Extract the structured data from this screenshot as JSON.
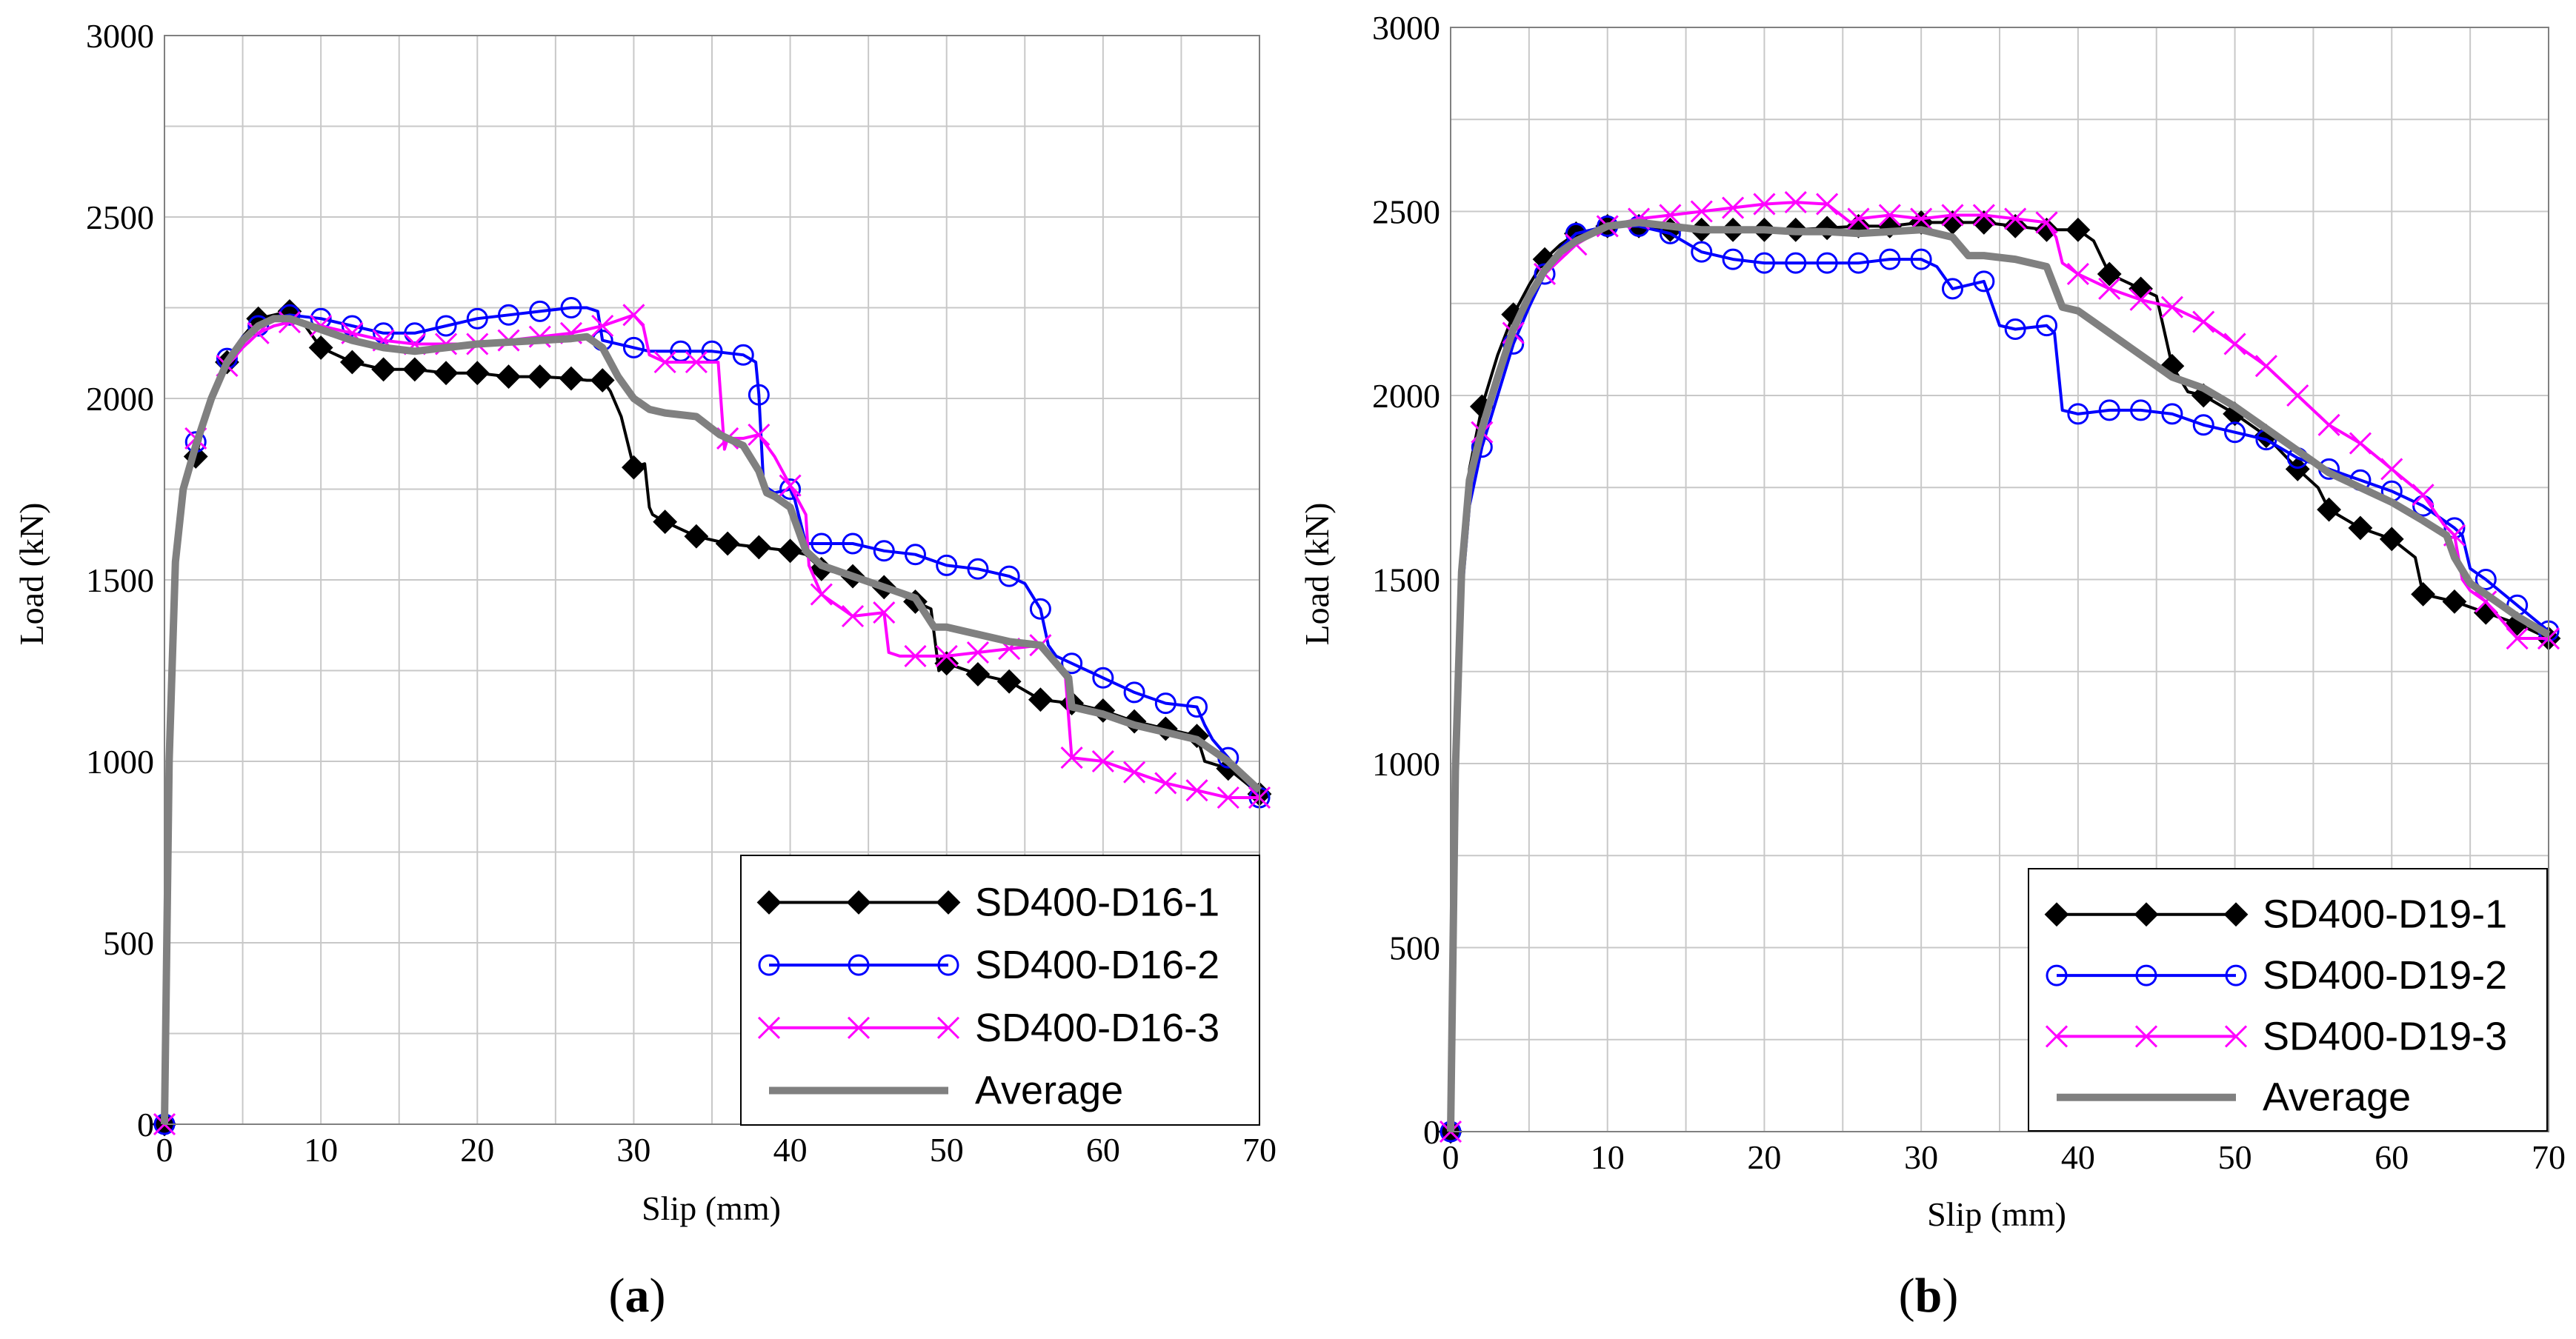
{
  "figure": {
    "panels": [
      "a",
      "b"
    ]
  },
  "chart_data": [
    {
      "type": "line",
      "panel_label": "a",
      "xlabel": "Slip (mm)",
      "ylabel": "Load (kN)",
      "xlim": [
        0,
        70
      ],
      "ylim": [
        0,
        3000
      ],
      "xticks": [
        0,
        10,
        20,
        30,
        40,
        50,
        60,
        70
      ],
      "yticks": [
        0,
        500,
        1000,
        1500,
        2000,
        2500,
        3000
      ],
      "grid": true,
      "legend_position": "bottom-right",
      "series": [
        {
          "name": "SD400-D16-1",
          "color": "#000000",
          "marker": "diamond",
          "x": [
            0,
            0.3,
            0.7,
            1.2,
            2,
            3,
            4,
            5,
            6,
            7,
            8,
            9,
            10,
            12,
            14,
            16,
            18,
            20,
            22,
            24,
            26,
            27,
            28,
            28.5,
            29.2,
            30,
            30.7,
            31,
            31.2,
            32,
            33,
            34,
            36,
            38,
            40,
            41,
            42,
            44,
            46,
            48,
            49,
            49.5,
            50,
            52,
            54,
            56,
            58,
            60,
            62,
            64,
            66,
            66.5,
            68,
            70
          ],
          "y": [
            0,
            1000,
            1550,
            1750,
            1840,
            2000,
            2100,
            2170,
            2220,
            2230,
            2240,
            2200,
            2140,
            2100,
            2080,
            2080,
            2070,
            2070,
            2060,
            2060,
            2055,
            2050,
            2050,
            2020,
            1950,
            1810,
            1820,
            1700,
            1680,
            1660,
            1640,
            1620,
            1600,
            1590,
            1580,
            1570,
            1530,
            1510,
            1480,
            1440,
            1420,
            1250,
            1270,
            1240,
            1220,
            1170,
            1160,
            1140,
            1110,
            1090,
            1070,
            1000,
            980,
            910
          ]
        },
        {
          "name": "SD400-D16-2",
          "color": "#0000FF",
          "marker": "circle",
          "x": [
            0,
            0.3,
            0.7,
            1.2,
            2,
            3,
            4,
            5,
            6,
            7,
            8,
            10,
            12,
            14,
            16,
            18,
            20,
            22,
            24,
            26,
            27,
            27.7,
            28,
            30,
            31,
            33,
            35,
            37,
            37.8,
            38,
            38.3,
            39,
            40,
            40.3,
            41,
            42,
            44,
            46,
            48,
            50,
            52,
            54,
            55,
            56,
            56.5,
            57,
            58,
            60,
            62,
            64,
            66,
            66.5,
            67,
            68,
            70
          ],
          "y": [
            0,
            1000,
            1550,
            1750,
            1880,
            2000,
            2110,
            2170,
            2200,
            2220,
            2230,
            2220,
            2200,
            2180,
            2180,
            2200,
            2220,
            2230,
            2240,
            2250,
            2250,
            2240,
            2160,
            2140,
            2130,
            2130,
            2130,
            2120,
            2100,
            2010,
            1760,
            1740,
            1750,
            1720,
            1600,
            1600,
            1600,
            1580,
            1570,
            1540,
            1530,
            1510,
            1490,
            1420,
            1320,
            1290,
            1270,
            1230,
            1190,
            1160,
            1150,
            1100,
            1060,
            1010,
            900
          ]
        },
        {
          "name": "SD400-D16-3",
          "color": "#FF00FF",
          "marker": "x",
          "x": [
            0,
            0.3,
            0.7,
            1.2,
            2,
            3,
            4,
            5,
            6,
            7,
            8,
            10,
            12,
            14,
            16,
            18,
            20,
            22,
            24,
            26,
            28,
            30,
            30.6,
            31,
            32,
            34,
            35.4,
            35.8,
            36,
            37,
            38,
            39,
            40,
            41,
            41.2,
            42,
            44,
            46,
            46.3,
            47,
            48,
            50,
            52,
            54,
            56,
            57.6,
            58,
            60,
            62,
            64,
            66,
            68,
            70
          ],
          "y": [
            0,
            1000,
            1550,
            1750,
            1890,
            2000,
            2090,
            2140,
            2180,
            2200,
            2210,
            2200,
            2180,
            2160,
            2150,
            2150,
            2150,
            2160,
            2170,
            2180,
            2200,
            2230,
            2200,
            2120,
            2100,
            2100,
            2100,
            1860,
            1890,
            1890,
            1900,
            1840,
            1760,
            1680,
            1540,
            1460,
            1400,
            1410,
            1300,
            1290,
            1290,
            1290,
            1300,
            1310,
            1320,
            1230,
            1010,
            1000,
            970,
            940,
            920,
            900,
            900
          ]
        },
        {
          "name": "Average",
          "color": "#808080",
          "marker": "none",
          "x": [
            0,
            0.3,
            0.7,
            1.2,
            2,
            3,
            4,
            5,
            6,
            7,
            8,
            10,
            12,
            14,
            16,
            18,
            20,
            22,
            24,
            26,
            27,
            28,
            29,
            30,
            31,
            32,
            34,
            35.5,
            36,
            37,
            38,
            38.5,
            39,
            40,
            41,
            42,
            44,
            46,
            48,
            49.2,
            50,
            52,
            54,
            56,
            57.8,
            58,
            60,
            62,
            64,
            66,
            68,
            70
          ],
          "y": [
            0,
            1000,
            1550,
            1750,
            1870,
            2000,
            2100,
            2160,
            2200,
            2220,
            2220,
            2190,
            2160,
            2140,
            2130,
            2140,
            2150,
            2155,
            2160,
            2165,
            2170,
            2140,
            2060,
            2000,
            1970,
            1960,
            1950,
            1900,
            1890,
            1870,
            1800,
            1740,
            1730,
            1700,
            1580,
            1540,
            1510,
            1480,
            1450,
            1370,
            1370,
            1350,
            1330,
            1320,
            1230,
            1150,
            1130,
            1100,
            1080,
            1060,
            1000,
            920
          ]
        }
      ]
    },
    {
      "type": "line",
      "panel_label": "b",
      "xlabel": "Slip (mm)",
      "ylabel": "Load (kN)",
      "xlim": [
        0,
        70
      ],
      "ylim": [
        0,
        3000
      ],
      "xticks": [
        0,
        10,
        20,
        30,
        40,
        50,
        60,
        70
      ],
      "yticks": [
        0,
        500,
        1000,
        1500,
        2000,
        2500,
        3000
      ],
      "grid": true,
      "legend_position": "bottom-right",
      "series": [
        {
          "name": "SD400-D19-1",
          "color": "#000000",
          "marker": "diamond",
          "x": [
            0,
            0.3,
            0.7,
            1.2,
            2,
            3,
            4,
            5,
            6,
            7,
            8,
            10,
            12,
            14,
            16,
            18,
            20,
            22,
            24,
            26,
            28,
            30,
            32,
            34,
            36,
            38,
            40,
            41,
            42,
            44,
            45,
            46,
            47,
            48,
            50,
            52,
            54,
            55.3,
            56,
            58,
            60,
            61.5,
            62,
            64,
            66,
            68,
            70
          ],
          "y": [
            0,
            1000,
            1550,
            1800,
            1970,
            2110,
            2220,
            2300,
            2370,
            2410,
            2440,
            2460,
            2460,
            2450,
            2450,
            2450,
            2450,
            2450,
            2455,
            2460,
            2460,
            2470,
            2470,
            2470,
            2460,
            2450,
            2450,
            2420,
            2330,
            2290,
            2270,
            2080,
            2010,
            2000,
            1950,
            1890,
            1800,
            1750,
            1690,
            1640,
            1610,
            1560,
            1460,
            1440,
            1410,
            1380,
            1340
          ]
        },
        {
          "name": "SD400-D19-2",
          "color": "#0000FF",
          "marker": "circle",
          "x": [
            0,
            0.3,
            0.7,
            1.2,
            2,
            3,
            4,
            5,
            6,
            7,
            8,
            10,
            12,
            14,
            16,
            18,
            20,
            22,
            24,
            26,
            28,
            30,
            31,
            32,
            33,
            34,
            35,
            36,
            38,
            38.5,
            39,
            40,
            42,
            44,
            46,
            48,
            50,
            52,
            54,
            56,
            58,
            60,
            62,
            64,
            64.5,
            65,
            66,
            68,
            70
          ],
          "y": [
            0,
            950,
            1450,
            1700,
            1860,
            2000,
            2140,
            2240,
            2330,
            2400,
            2440,
            2460,
            2460,
            2440,
            2390,
            2370,
            2360,
            2360,
            2360,
            2360,
            2370,
            2370,
            2350,
            2290,
            2300,
            2310,
            2190,
            2180,
            2190,
            2170,
            1960,
            1950,
            1960,
            1960,
            1950,
            1920,
            1900,
            1880,
            1830,
            1800,
            1770,
            1740,
            1700,
            1640,
            1620,
            1530,
            1500,
            1430,
            1360
          ]
        },
        {
          "name": "SD400-D19-3",
          "color": "#FF00FF",
          "marker": "x",
          "x": [
            0,
            0.3,
            0.7,
            1.2,
            2,
            3,
            4,
            5,
            6,
            7,
            8,
            10,
            12,
            14,
            16,
            18,
            20,
            22,
            24,
            25.5,
            26,
            28,
            30,
            32,
            34,
            36,
            38,
            38.6,
            39,
            40,
            42,
            44,
            46,
            48,
            50,
            52,
            54,
            56,
            58,
            60,
            62,
            63.3,
            64,
            64.5,
            65,
            66,
            68,
            70
          ],
          "y": [
            0,
            1000,
            1550,
            1780,
            1900,
            2040,
            2170,
            2260,
            2330,
            2370,
            2410,
            2460,
            2480,
            2490,
            2500,
            2510,
            2520,
            2525,
            2520,
            2470,
            2480,
            2490,
            2480,
            2490,
            2490,
            2480,
            2470,
            2430,
            2360,
            2330,
            2290,
            2260,
            2240,
            2200,
            2140,
            2080,
            2000,
            1920,
            1870,
            1800,
            1730,
            1650,
            1620,
            1500,
            1470,
            1440,
            1340,
            1340
          ]
        },
        {
          "name": "Average",
          "color": "#808080",
          "marker": "none",
          "x": [
            0,
            0.3,
            0.7,
            1.2,
            2,
            3,
            4,
            5,
            6,
            7,
            8,
            10,
            12,
            14,
            16,
            18,
            20,
            22,
            24,
            26,
            28,
            30,
            32,
            33,
            34,
            36,
            38,
            39,
            40,
            42,
            44,
            45,
            46,
            48,
            50,
            52,
            54,
            56,
            58,
            60,
            62,
            63.5,
            64,
            65,
            66,
            68,
            70
          ],
          "y": [
            0,
            980,
            1520,
            1770,
            1910,
            2050,
            2180,
            2270,
            2340,
            2390,
            2420,
            2460,
            2470,
            2460,
            2450,
            2450,
            2450,
            2445,
            2445,
            2440,
            2445,
            2450,
            2430,
            2380,
            2380,
            2370,
            2350,
            2240,
            2230,
            2170,
            2110,
            2080,
            2050,
            2020,
            1970,
            1910,
            1850,
            1790,
            1750,
            1710,
            1660,
            1620,
            1560,
            1490,
            1460,
            1400,
            1350
          ]
        }
      ]
    }
  ]
}
